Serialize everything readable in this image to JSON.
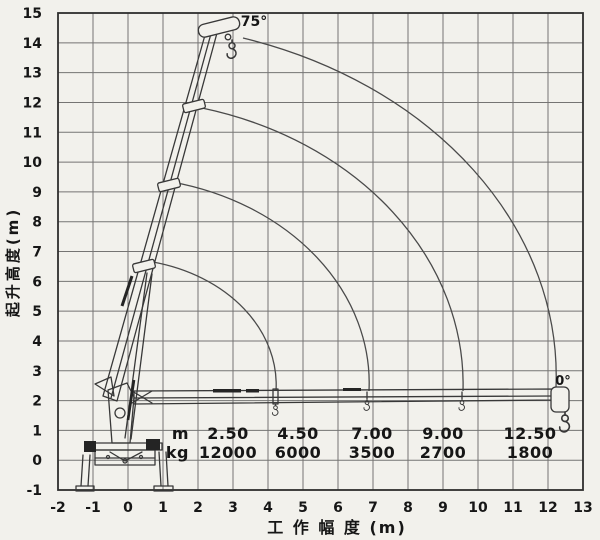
{
  "chart_data": {
    "type": "table",
    "title": "Truck crane working range / load chart",
    "xlabel": "工 作 幅 度 (m)",
    "ylabel": "起升高度(m)",
    "xlim": [
      -2,
      13
    ],
    "ylim": [
      -1,
      15
    ],
    "grid": true,
    "boom_angle_labels": [
      "75°",
      "0°"
    ],
    "load_table": {
      "radius_m": [
        2.5,
        4.5,
        7.0,
        9.0,
        12.5
      ],
      "capacity_kg": [
        12000,
        6000,
        3500,
        2700,
        1800
      ]
    },
    "boom_tip_arc_radii_m_approx": [
      4.3,
      7.0,
      9.7,
      12.5
    ]
  },
  "axes": {
    "x_ticks": [
      "-2",
      "-1",
      "0",
      "1",
      "2",
      "3",
      "4",
      "5",
      "6",
      "7",
      "8",
      "9",
      "10",
      "11",
      "12",
      "13"
    ],
    "y_ticks": [
      "15",
      "14",
      "13",
      "12",
      "11",
      "10",
      "9",
      "8",
      "7",
      "6",
      "5",
      "4",
      "3",
      "2",
      "1",
      "0",
      "-1"
    ],
    "x_title": "工 作 幅 度 (m)",
    "y_title": "起升高度(m)"
  },
  "labels": {
    "boom_up_angle": "75°",
    "boom_flat_angle": "0°"
  },
  "table": {
    "row1_label": "m",
    "row2_label": "kg",
    "radii": [
      "2.50",
      "4.50",
      "7.00",
      "9.00",
      "12.50"
    ],
    "loads": [
      "12000",
      "6000",
      "3500",
      "2700",
      "1800"
    ]
  },
  "colors": {
    "background": "#f2f1ec",
    "grid": "#565656",
    "frame": "#2e2e2e",
    "drawing": "#383838",
    "text": "#161616"
  }
}
